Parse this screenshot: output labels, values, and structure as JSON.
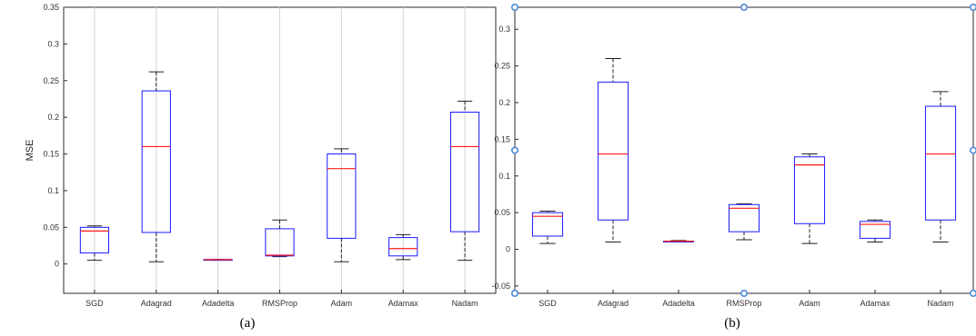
{
  "chart_data": [
    {
      "type": "box",
      "panel_label": "(a)",
      "xlabel": "",
      "ylabel": "MSE",
      "ylim": [
        -0.04,
        0.35
      ],
      "yticks": [
        0,
        0.05,
        0.1,
        0.15,
        0.2,
        0.25,
        0.3,
        0.35
      ],
      "vertical_gridlines": true,
      "categories": [
        "SGD",
        "Adagrad",
        "Adadelta",
        "RMSProp",
        "Adam",
        "Adamax",
        "Nadam"
      ],
      "boxes": [
        {
          "min": 0.005,
          "q1": 0.015,
          "median": 0.045,
          "q3": 0.05,
          "max": 0.052
        },
        {
          "min": 0.003,
          "q1": 0.043,
          "median": 0.16,
          "q3": 0.236,
          "max": 0.262
        },
        {
          "min": 0.006,
          "q1": 0.006,
          "median": 0.006,
          "q3": 0.006,
          "max": 0.006
        },
        {
          "min": 0.01,
          "q1": 0.011,
          "median": 0.012,
          "q3": 0.048,
          "max": 0.06
        },
        {
          "min": 0.003,
          "q1": 0.035,
          "median": 0.13,
          "q3": 0.15,
          "max": 0.157
        },
        {
          "min": 0.006,
          "q1": 0.011,
          "median": 0.021,
          "q3": 0.036,
          "max": 0.04
        },
        {
          "min": 0.005,
          "q1": 0.044,
          "median": 0.16,
          "q3": 0.207,
          "max": 0.222
        }
      ]
    },
    {
      "type": "box",
      "panel_label": "(b)",
      "xlabel": "",
      "ylabel": "",
      "ylim": [
        -0.06,
        0.33
      ],
      "yticks": [
        -0.05,
        0,
        0.05,
        0.1,
        0.15,
        0.2,
        0.25,
        0.3
      ],
      "vertical_gridlines": false,
      "categories": [
        "SGD",
        "Adagrad",
        "Adadelta",
        "RMSProp",
        "Adam",
        "Adamax",
        "Nadam"
      ],
      "boxes": [
        {
          "min": 0.008,
          "q1": 0.018,
          "median": 0.045,
          "q3": 0.05,
          "max": 0.052
        },
        {
          "min": 0.01,
          "q1": 0.04,
          "median": 0.13,
          "q3": 0.228,
          "max": 0.26
        },
        {
          "min": 0.01,
          "q1": 0.01,
          "median": 0.011,
          "q3": 0.011,
          "max": 0.012
        },
        {
          "min": 0.013,
          "q1": 0.024,
          "median": 0.056,
          "q3": 0.061,
          "max": 0.062
        },
        {
          "min": 0.008,
          "q1": 0.035,
          "median": 0.115,
          "q3": 0.126,
          "max": 0.13
        },
        {
          "min": 0.01,
          "q1": 0.015,
          "median": 0.034,
          "q3": 0.038,
          "max": 0.04
        },
        {
          "min": 0.01,
          "q1": 0.04,
          "median": 0.13,
          "q3": 0.195,
          "max": 0.215
        }
      ]
    }
  ],
  "style": {
    "box_color": "#1a1aff",
    "median_color": "#ff1a1a",
    "whisker_color": "#222222",
    "grid_color": "#d4d4d4",
    "handle_color": "#4d8ad6"
  }
}
